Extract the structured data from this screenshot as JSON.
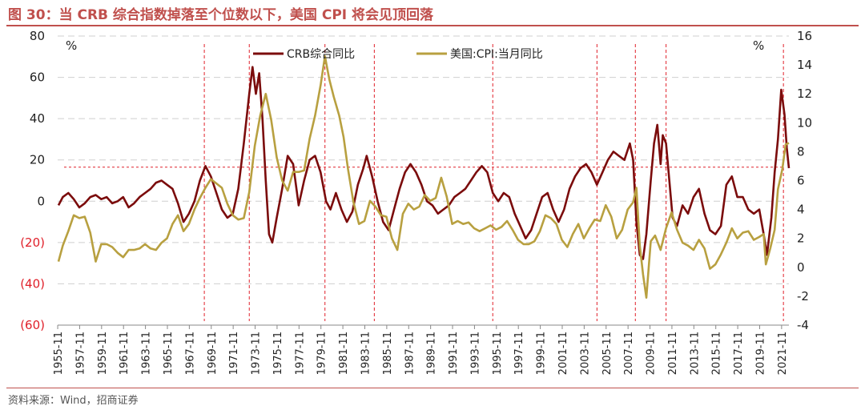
{
  "header": {
    "title": "图 30：当 CRB 综合指数掉落至个位数以下，美国 CPI 将会见顶回落"
  },
  "footer": {
    "source": "资料来源：Wind，招商证券"
  },
  "chart_data": {
    "type": "line",
    "left_axis": {
      "unit": "%",
      "ylim": [
        -60,
        80
      ],
      "tick_labels": [
        "80",
        "60",
        "40",
        "20",
        "0",
        "(20)",
        "(40)",
        "(60)"
      ],
      "tick_values": [
        80,
        60,
        40,
        20,
        0,
        -20,
        -40,
        -60
      ]
    },
    "right_axis": {
      "unit": "%",
      "ylim": [
        -4,
        16
      ],
      "tick_labels": [
        "16",
        "14",
        "12",
        "10",
        "8",
        "6",
        "4",
        "2",
        "0",
        "-2",
        "-4"
      ],
      "tick_values": [
        16,
        14,
        12,
        10,
        8,
        6,
        4,
        2,
        0,
        -2,
        -4
      ]
    },
    "x_range": [
      1955.83,
      2022.5
    ],
    "x_tick_labels": [
      "1955-11",
      "1957-11",
      "1959-11",
      "1961-11",
      "1963-11",
      "1965-11",
      "1967-11",
      "1969-11",
      "1971-11",
      "1973-11",
      "1975-11",
      "1977-11",
      "1979-11",
      "1981-11",
      "1983-11",
      "1985-11",
      "1987-11",
      "1989-11",
      "1991-11",
      "1993-11",
      "1995-11",
      "1997-11",
      "1999-11",
      "2001-11",
      "2003-11",
      "2005-11",
      "2007-11",
      "2009-11",
      "2011-11",
      "2013-11",
      "2015-11",
      "2017-11",
      "2019-11",
      "2021-11"
    ],
    "reference_line": {
      "axis": "left",
      "value": 16.5,
      "label": ""
    },
    "vertical_markers": [
      1969.2,
      1973.3,
      1980.2,
      1984.7,
      1995.5,
      2005.0,
      2008.5,
      2011.3,
      2022.0
    ],
    "series": [
      {
        "name": "CRB综合同比",
        "axis": "left",
        "color": "#7B0C0C",
        "points": [
          [
            1955.9,
            -2
          ],
          [
            1956.3,
            2
          ],
          [
            1956.8,
            4
          ],
          [
            1957.3,
            1
          ],
          [
            1957.8,
            -3
          ],
          [
            1958.3,
            -1
          ],
          [
            1958.8,
            2
          ],
          [
            1959.3,
            3
          ],
          [
            1959.8,
            1
          ],
          [
            1960.3,
            2
          ],
          [
            1960.8,
            -1
          ],
          [
            1961.3,
            0
          ],
          [
            1961.8,
            2
          ],
          [
            1962.3,
            -3
          ],
          [
            1962.8,
            -1
          ],
          [
            1963.3,
            2
          ],
          [
            1963.8,
            4
          ],
          [
            1964.3,
            6
          ],
          [
            1964.8,
            9
          ],
          [
            1965.3,
            10
          ],
          [
            1965.8,
            8
          ],
          [
            1966.3,
            6
          ],
          [
            1966.8,
            -1
          ],
          [
            1967.3,
            -10
          ],
          [
            1967.8,
            -6
          ],
          [
            1968.3,
            0
          ],
          [
            1968.8,
            10
          ],
          [
            1969.3,
            17
          ],
          [
            1969.8,
            12
          ],
          [
            1970.3,
            4
          ],
          [
            1970.8,
            -4
          ],
          [
            1971.3,
            -8
          ],
          [
            1971.8,
            -6
          ],
          [
            1972.3,
            6
          ],
          [
            1972.8,
            28
          ],
          [
            1973.3,
            52
          ],
          [
            1973.6,
            65
          ],
          [
            1973.9,
            52
          ],
          [
            1974.2,
            62
          ],
          [
            1974.5,
            40
          ],
          [
            1974.8,
            10
          ],
          [
            1975.1,
            -16
          ],
          [
            1975.4,
            -20
          ],
          [
            1975.8,
            -8
          ],
          [
            1976.3,
            6
          ],
          [
            1976.8,
            22
          ],
          [
            1977.3,
            18
          ],
          [
            1977.8,
            -2
          ],
          [
            1978.3,
            10
          ],
          [
            1978.8,
            20
          ],
          [
            1979.3,
            22
          ],
          [
            1979.8,
            14
          ],
          [
            1980.3,
            0
          ],
          [
            1980.7,
            -4
          ],
          [
            1981.2,
            4
          ],
          [
            1981.7,
            -4
          ],
          [
            1982.2,
            -10
          ],
          [
            1982.7,
            -5
          ],
          [
            1983.2,
            8
          ],
          [
            1983.7,
            16
          ],
          [
            1984.0,
            22
          ],
          [
            1984.5,
            12
          ],
          [
            1985.0,
            0
          ],
          [
            1985.5,
            -10
          ],
          [
            1986.0,
            -14
          ],
          [
            1986.5,
            -4
          ],
          [
            1987.0,
            6
          ],
          [
            1987.5,
            14
          ],
          [
            1988.0,
            18
          ],
          [
            1988.5,
            14
          ],
          [
            1989.0,
            8
          ],
          [
            1989.5,
            0
          ],
          [
            1990.0,
            -2
          ],
          [
            1990.5,
            -6
          ],
          [
            1991.0,
            -4
          ],
          [
            1991.5,
            -2
          ],
          [
            1992.0,
            2
          ],
          [
            1992.5,
            4
          ],
          [
            1993.0,
            6
          ],
          [
            1993.5,
            10
          ],
          [
            1994.0,
            14
          ],
          [
            1994.5,
            17
          ],
          [
            1995.0,
            14
          ],
          [
            1995.5,
            4
          ],
          [
            1996.0,
            0
          ],
          [
            1996.5,
            4
          ],
          [
            1997.0,
            2
          ],
          [
            1997.5,
            -6
          ],
          [
            1998.0,
            -12
          ],
          [
            1998.5,
            -18
          ],
          [
            1999.0,
            -14
          ],
          [
            1999.5,
            -6
          ],
          [
            2000.0,
            2
          ],
          [
            2000.5,
            4
          ],
          [
            2001.0,
            -4
          ],
          [
            2001.5,
            -10
          ],
          [
            2002.0,
            -4
          ],
          [
            2002.5,
            6
          ],
          [
            2003.0,
            12
          ],
          [
            2003.5,
            16
          ],
          [
            2004.0,
            18
          ],
          [
            2004.5,
            14
          ],
          [
            2005.0,
            8
          ],
          [
            2005.5,
            14
          ],
          [
            2006.0,
            20
          ],
          [
            2006.5,
            24
          ],
          [
            2007.0,
            22
          ],
          [
            2007.5,
            20
          ],
          [
            2008.0,
            28
          ],
          [
            2008.3,
            20
          ],
          [
            2008.6,
            -10
          ],
          [
            2008.9,
            -26
          ],
          [
            2009.2,
            -28
          ],
          [
            2009.5,
            -16
          ],
          [
            2009.9,
            10
          ],
          [
            2010.2,
            28
          ],
          [
            2010.5,
            37
          ],
          [
            2010.8,
            18
          ],
          [
            2011.0,
            32
          ],
          [
            2011.3,
            28
          ],
          [
            2011.6,
            10
          ],
          [
            2011.9,
            -8
          ],
          [
            2012.3,
            -12
          ],
          [
            2012.8,
            -2
          ],
          [
            2013.3,
            -6
          ],
          [
            2013.8,
            2
          ],
          [
            2014.3,
            6
          ],
          [
            2014.8,
            -6
          ],
          [
            2015.3,
            -14
          ],
          [
            2015.8,
            -16
          ],
          [
            2016.3,
            -12
          ],
          [
            2016.8,
            8
          ],
          [
            2017.3,
            12
          ],
          [
            2017.8,
            2
          ],
          [
            2018.3,
            2
          ],
          [
            2018.8,
            -4
          ],
          [
            2019.3,
            -6
          ],
          [
            2019.8,
            -4
          ],
          [
            2020.2,
            -16
          ],
          [
            2020.5,
            -26
          ],
          [
            2020.9,
            -8
          ],
          [
            2021.2,
            14
          ],
          [
            2021.5,
            30
          ],
          [
            2021.8,
            54
          ],
          [
            2022.1,
            42
          ],
          [
            2022.3,
            26
          ],
          [
            2022.5,
            16
          ]
        ]
      },
      {
        "name": "美国:CPI:当月同比",
        "axis": "right",
        "color": "#B8A040",
        "points": [
          [
            1955.9,
            0.4
          ],
          [
            1956.3,
            1.5
          ],
          [
            1956.8,
            2.5
          ],
          [
            1957.3,
            3.6
          ],
          [
            1957.8,
            3.4
          ],
          [
            1958.3,
            3.5
          ],
          [
            1958.8,
            2.4
          ],
          [
            1959.3,
            0.4
          ],
          [
            1959.8,
            1.6
          ],
          [
            1960.3,
            1.6
          ],
          [
            1960.8,
            1.4
          ],
          [
            1961.3,
            1.0
          ],
          [
            1961.8,
            0.7
          ],
          [
            1962.3,
            1.2
          ],
          [
            1962.8,
            1.2
          ],
          [
            1963.3,
            1.3
          ],
          [
            1963.8,
            1.6
          ],
          [
            1964.3,
            1.3
          ],
          [
            1964.8,
            1.2
          ],
          [
            1965.3,
            1.7
          ],
          [
            1965.8,
            2.0
          ],
          [
            1966.3,
            3.0
          ],
          [
            1966.8,
            3.6
          ],
          [
            1967.3,
            2.5
          ],
          [
            1967.8,
            3.0
          ],
          [
            1968.3,
            4.0
          ],
          [
            1968.8,
            4.8
          ],
          [
            1969.3,
            5.5
          ],
          [
            1969.8,
            6.1
          ],
          [
            1970.3,
            5.8
          ],
          [
            1970.8,
            5.5
          ],
          [
            1971.3,
            4.4
          ],
          [
            1971.8,
            3.6
          ],
          [
            1972.3,
            3.3
          ],
          [
            1972.8,
            3.4
          ],
          [
            1973.3,
            5.2
          ],
          [
            1973.8,
            8.4
          ],
          [
            1974.3,
            10.5
          ],
          [
            1974.8,
            12.0
          ],
          [
            1975.3,
            10.2
          ],
          [
            1975.8,
            7.6
          ],
          [
            1976.3,
            6.0
          ],
          [
            1976.8,
            5.3
          ],
          [
            1977.3,
            6.6
          ],
          [
            1977.8,
            6.6
          ],
          [
            1978.3,
            6.7
          ],
          [
            1978.8,
            8.9
          ],
          [
            1979.3,
            10.5
          ],
          [
            1979.8,
            12.6
          ],
          [
            1980.2,
            14.6
          ],
          [
            1980.6,
            13.0
          ],
          [
            1981.0,
            11.8
          ],
          [
            1981.5,
            10.5
          ],
          [
            1981.9,
            9.0
          ],
          [
            1982.3,
            6.8
          ],
          [
            1982.8,
            4.5
          ],
          [
            1983.3,
            3.0
          ],
          [
            1983.8,
            3.2
          ],
          [
            1984.3,
            4.6
          ],
          [
            1984.8,
            4.2
          ],
          [
            1985.3,
            3.6
          ],
          [
            1985.8,
            3.5
          ],
          [
            1986.3,
            2.0
          ],
          [
            1986.8,
            1.2
          ],
          [
            1987.3,
            3.7
          ],
          [
            1987.8,
            4.4
          ],
          [
            1988.3,
            4.0
          ],
          [
            1988.8,
            4.2
          ],
          [
            1989.3,
            5.0
          ],
          [
            1989.8,
            4.6
          ],
          [
            1990.3,
            4.8
          ],
          [
            1990.8,
            6.2
          ],
          [
            1991.3,
            4.9
          ],
          [
            1991.8,
            3.0
          ],
          [
            1992.3,
            3.2
          ],
          [
            1992.8,
            3.0
          ],
          [
            1993.3,
            3.1
          ],
          [
            1993.8,
            2.7
          ],
          [
            1994.3,
            2.5
          ],
          [
            1994.8,
            2.7
          ],
          [
            1995.3,
            2.9
          ],
          [
            1995.8,
            2.6
          ],
          [
            1996.3,
            2.8
          ],
          [
            1996.8,
            3.2
          ],
          [
            1997.3,
            2.6
          ],
          [
            1997.8,
            1.9
          ],
          [
            1998.3,
            1.6
          ],
          [
            1998.8,
            1.6
          ],
          [
            1999.3,
            1.8
          ],
          [
            1999.8,
            2.5
          ],
          [
            2000.3,
            3.6
          ],
          [
            2000.8,
            3.4
          ],
          [
            2001.3,
            3.0
          ],
          [
            2001.8,
            1.9
          ],
          [
            2002.3,
            1.4
          ],
          [
            2002.8,
            2.3
          ],
          [
            2003.3,
            3.0
          ],
          [
            2003.8,
            2.0
          ],
          [
            2004.3,
            2.7
          ],
          [
            2004.8,
            3.3
          ],
          [
            2005.3,
            3.2
          ],
          [
            2005.8,
            4.3
          ],
          [
            2006.3,
            3.5
          ],
          [
            2006.8,
            2.0
          ],
          [
            2007.3,
            2.6
          ],
          [
            2007.8,
            4.0
          ],
          [
            2008.3,
            4.5
          ],
          [
            2008.6,
            5.5
          ],
          [
            2008.9,
            1.5
          ],
          [
            2009.2,
            -0.5
          ],
          [
            2009.5,
            -2.1
          ],
          [
            2009.9,
            1.8
          ],
          [
            2010.3,
            2.2
          ],
          [
            2010.8,
            1.2
          ],
          [
            2011.3,
            2.7
          ],
          [
            2011.8,
            3.8
          ],
          [
            2012.3,
            2.6
          ],
          [
            2012.8,
            1.7
          ],
          [
            2013.3,
            1.5
          ],
          [
            2013.8,
            1.2
          ],
          [
            2014.3,
            1.9
          ],
          [
            2014.8,
            1.3
          ],
          [
            2015.3,
            -0.1
          ],
          [
            2015.8,
            0.2
          ],
          [
            2016.3,
            0.9
          ],
          [
            2016.8,
            1.7
          ],
          [
            2017.3,
            2.7
          ],
          [
            2017.8,
            2.0
          ],
          [
            2018.3,
            2.4
          ],
          [
            2018.8,
            2.5
          ],
          [
            2019.3,
            1.9
          ],
          [
            2019.8,
            2.1
          ],
          [
            2020.2,
            2.3
          ],
          [
            2020.4,
            0.2
          ],
          [
            2020.8,
            1.3
          ],
          [
            2021.2,
            2.6
          ],
          [
            2021.5,
            5.4
          ],
          [
            2021.9,
            6.8
          ],
          [
            2022.2,
            8.5
          ],
          [
            2022.5,
            8.6
          ]
        ]
      }
    ]
  }
}
